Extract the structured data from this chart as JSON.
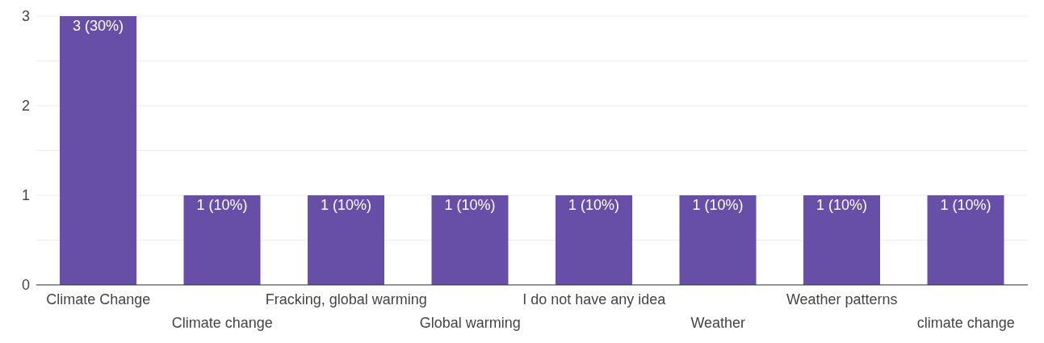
{
  "chart_data": {
    "type": "bar",
    "categories": [
      "Climate Change",
      "Climate change",
      "Fracking, global warming",
      "Global warming",
      "I do not have any idea",
      "Weather",
      "Weather patterns",
      "climate change"
    ],
    "values": [
      3,
      1,
      1,
      1,
      1,
      1,
      1,
      1
    ],
    "value_labels": [
      "3 (30%)",
      "1 (10%)",
      "1 (10%)",
      "1 (10%)",
      "1 (10%)",
      "1 (10%)",
      "1 (10%)",
      "1 (10%)"
    ],
    "color": "#674ea7",
    "ylim": [
      0,
      3
    ],
    "yticks": [
      0,
      {
        "value": 0.5,
        "label": null
      },
      1,
      {
        "value": 1.5,
        "label": null
      },
      2,
      {
        "value": 2.5,
        "label": null
      },
      3
    ],
    "grid": "y",
    "legend": false
  }
}
